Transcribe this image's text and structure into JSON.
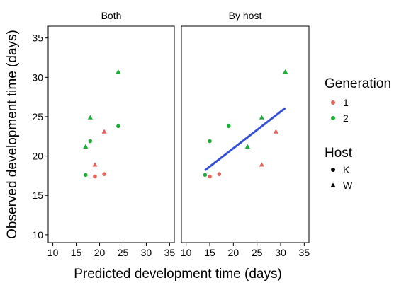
{
  "chart_data": {
    "type": "scatter",
    "xlabel": "Predicted development time (days)",
    "ylabel": "Observed development time (days)",
    "xlim": [
      9,
      36
    ],
    "ylim": [
      9,
      36.5
    ],
    "xticks": [
      10,
      15,
      20,
      25,
      30,
      35
    ],
    "yticks": [
      10,
      15,
      20,
      25,
      30,
      35
    ],
    "grid": false,
    "panels": [
      {
        "title": "Both",
        "points": [
          {
            "x": 17,
            "y": 17.6,
            "generation": "2",
            "host": "K"
          },
          {
            "x": 19,
            "y": 17.4,
            "generation": "1",
            "host": "K"
          },
          {
            "x": 21,
            "y": 17.7,
            "generation": "1",
            "host": "K"
          },
          {
            "x": 18,
            "y": 21.9,
            "generation": "2",
            "host": "K"
          },
          {
            "x": 24,
            "y": 23.8,
            "generation": "2",
            "host": "K"
          },
          {
            "x": 17,
            "y": 21.2,
            "generation": "2",
            "host": "W"
          },
          {
            "x": 19,
            "y": 18.9,
            "generation": "1",
            "host": "W"
          },
          {
            "x": 21,
            "y": 23.1,
            "generation": "1",
            "host": "W"
          },
          {
            "x": 18,
            "y": 24.9,
            "generation": "2",
            "host": "W"
          },
          {
            "x": 24,
            "y": 30.7,
            "generation": "2",
            "host": "W"
          }
        ]
      },
      {
        "title": "By host",
        "points": [
          {
            "x": 14,
            "y": 17.6,
            "generation": "2",
            "host": "K"
          },
          {
            "x": 15,
            "y": 17.4,
            "generation": "1",
            "host": "K"
          },
          {
            "x": 17,
            "y": 17.7,
            "generation": "1",
            "host": "K"
          },
          {
            "x": 15,
            "y": 21.9,
            "generation": "2",
            "host": "K"
          },
          {
            "x": 19,
            "y": 23.8,
            "generation": "2",
            "host": "K"
          },
          {
            "x": 23,
            "y": 21.2,
            "generation": "2",
            "host": "W"
          },
          {
            "x": 26,
            "y": 18.9,
            "generation": "1",
            "host": "W"
          },
          {
            "x": 29,
            "y": 23.1,
            "generation": "1",
            "host": "W"
          },
          {
            "x": 26,
            "y": 24.9,
            "generation": "2",
            "host": "W"
          },
          {
            "x": 31,
            "y": 30.7,
            "generation": "2",
            "host": "W"
          }
        ],
        "fit_line": {
          "x": [
            14,
            31
          ],
          "y": [
            18.2,
            26.1
          ],
          "color": "#3450d8"
        }
      }
    ],
    "legend": {
      "placement": "right",
      "generation": {
        "title": "Generation",
        "items": [
          {
            "label": "1",
            "color": "#e0645c"
          },
          {
            "label": "2",
            "color": "#1fad3a"
          }
        ]
      },
      "host": {
        "title": "Host",
        "items": [
          {
            "label": "K",
            "shape": "circle"
          },
          {
            "label": "W",
            "shape": "triangle"
          }
        ]
      }
    }
  }
}
